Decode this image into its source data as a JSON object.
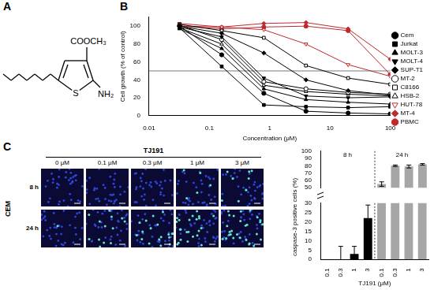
{
  "panel_labels": [
    "A",
    "B",
    "C"
  ],
  "structure": {
    "substituent_top": "COOCH₃",
    "substituent_right": "NH₂",
    "ring_atom": "S"
  },
  "microscopy": {
    "compound": "TJ191",
    "cell_line": "CEM",
    "concentrations": [
      "0 μM",
      "0.1 μM",
      "0.3 μM",
      "1 μM",
      "3 μM"
    ],
    "times": [
      "8 h",
      "24 h"
    ]
  },
  "chart_data": [
    {
      "type": "line",
      "xlabel": "Concentration (μM)",
      "ylabel": "Cell growth (% of control)",
      "log": "x",
      "x": [
        0.032,
        0.16,
        0.8,
        4,
        20,
        100
      ],
      "xlim": [
        0.01,
        100
      ],
      "xticks": [
        0.01,
        0.1,
        1,
        10,
        100
      ],
      "ylim": [
        0,
        110
      ],
      "yticks": [
        0,
        20,
        40,
        60,
        80,
        100
      ],
      "reference_line": 50,
      "legend": "right",
      "series": [
        {
          "name": "Cem",
          "color": "#000000",
          "marker": "circle",
          "values": [
            100,
            68,
            25,
            5,
            3,
            2
          ]
        },
        {
          "name": "Jurkat",
          "color": "#000000",
          "marker": "square",
          "values": [
            98,
            55,
            12,
            10,
            9,
            10
          ]
        },
        {
          "name": "MOLT-3",
          "color": "#000000",
          "marker": "triangle",
          "values": [
            97,
            75,
            30,
            18,
            15,
            13
          ]
        },
        {
          "name": "MOLT-4",
          "color": "#000000",
          "marker": "triangle_down",
          "values": [
            99,
            88,
            42,
            22,
            20,
            21
          ]
        },
        {
          "name": "SUP-T1",
          "color": "#000000",
          "marker": "diamond",
          "values": [
            100,
            92,
            70,
            40,
            28,
            23
          ]
        },
        {
          "name": "MT-2",
          "color": "#000000",
          "marker": "open_circle",
          "values": [
            101,
            85,
            38,
            30,
            26,
            24
          ]
        },
        {
          "name": "C8166",
          "color": "#000000",
          "marker": "open_square",
          "values": [
            102,
            95,
            87,
            56,
            42,
            35
          ]
        },
        {
          "name": "HSB-2",
          "color": "#000000",
          "marker": "open_triangle",
          "values": [
            98,
            80,
            34,
            27,
            24,
            22
          ]
        },
        {
          "name": "HUT-78",
          "color": "#c0282d",
          "marker": "open_triangle_down",
          "values": [
            103,
            99,
            96,
            80,
            57,
            44
          ]
        },
        {
          "name": "MT-4",
          "color": "#c0282d",
          "marker": "diamond",
          "values": [
            100,
            99,
            103,
            104,
            97,
            63
          ]
        },
        {
          "name": "PBMC",
          "color": "#c0282d",
          "marker": "circle",
          "values": [
            100,
            97,
            99,
            100,
            95,
            46
          ]
        }
      ]
    },
    {
      "type": "bar",
      "xlabel": "TJ191 (μM)",
      "ylabel": "caspase-3 positive cells (%)",
      "categories": [
        "0.1",
        "0.3",
        "1",
        "3",
        "0.1",
        "0.3",
        "1",
        "3"
      ],
      "ylim": [
        0,
        100
      ],
      "yticks": [
        0,
        5,
        10,
        15,
        20,
        25,
        30,
        50,
        60,
        70,
        80,
        90,
        100
      ],
      "series": [
        {
          "name": "8 h",
          "color": "#000000",
          "values": [
            0,
            0,
            3,
            22,
            null,
            null,
            null,
            null
          ],
          "errors": [
            0,
            7,
            4,
            7,
            null,
            null,
            null,
            null
          ]
        },
        {
          "name": "24 h",
          "color": "#a6a6a6",
          "values": [
            null,
            null,
            null,
            null,
            55,
            80,
            79,
            82
          ],
          "errors": [
            null,
            null,
            null,
            null,
            3,
            1,
            2,
            1
          ]
        }
      ]
    }
  ]
}
